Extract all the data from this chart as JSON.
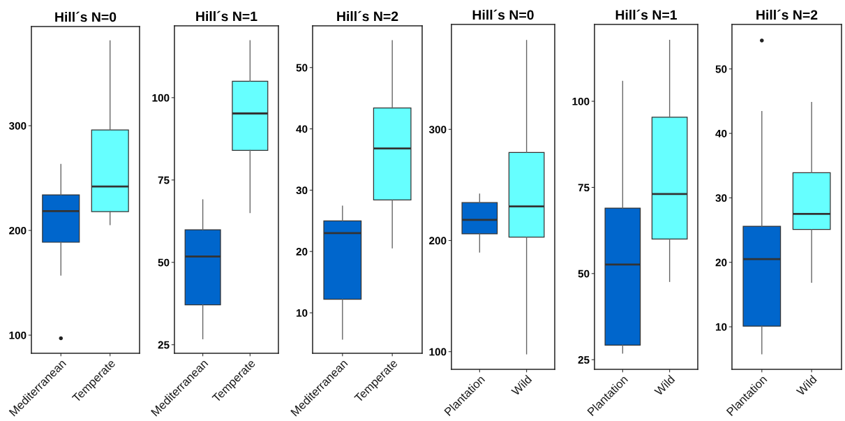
{
  "chart_data": [
    {
      "type": "box",
      "title": "Hill´s N=0",
      "categories": [
        "Mediterranean",
        "Temperate"
      ],
      "colors": [
        "#0066cc",
        "#66ffff"
      ],
      "boxes": [
        {
          "low": 157.3,
          "q1": 188.7,
          "median": 218.5,
          "q3": 234,
          "high": 263,
          "outliers": [
            97
          ]
        },
        {
          "low": 205.5,
          "q1": 218,
          "median": 242,
          "q3": 296,
          "high": 381
        }
      ],
      "ylim": [
        82.7,
        394.7
      ],
      "yticks": [
        100,
        200,
        300
      ]
    },
    {
      "type": "box",
      "title": "Hill´s N=1",
      "categories": [
        "Mediterranean",
        "Temperate"
      ],
      "colors": [
        "#0066cc",
        "#66ffff"
      ],
      "boxes": [
        {
          "low": 26.8,
          "q1": 37.1,
          "median": 51.8,
          "q3": 59.9,
          "high": 69
        },
        {
          "low": 65.1,
          "q1": 84,
          "median": 95.2,
          "q3": 105,
          "high": 117.3
        }
      ],
      "ylim": [
        22.4,
        121.8
      ],
      "yticks": [
        25,
        50,
        75,
        100
      ]
    },
    {
      "type": "box",
      "title": "Hill´s N=2",
      "categories": [
        "Mediterranean",
        "Temperate"
      ],
      "colors": [
        "#0066cc",
        "#66ffff"
      ],
      "boxes": [
        {
          "low": 5.7,
          "q1": 12.2,
          "median": 23,
          "q3": 25,
          "high": 27.4
        },
        {
          "low": 20.6,
          "q1": 28.4,
          "median": 36.8,
          "q3": 43.4,
          "high": 54.4
        }
      ],
      "ylim": [
        3.4,
        56.8
      ],
      "yticks": [
        10,
        20,
        30,
        40,
        50
      ]
    },
    {
      "type": "box",
      "title": "Hill´s N=0",
      "categories": [
        "Plantation",
        "Wild"
      ],
      "colors": [
        "#0066cc",
        "#66ffff"
      ],
      "boxes": [
        {
          "low": 189.6,
          "q1": 206,
          "median": 218.6,
          "q3": 234.1,
          "high": 241.8
        },
        {
          "low": 98,
          "q1": 203.1,
          "median": 230.7,
          "q3": 279.2,
          "high": 380
        }
      ],
      "ylim": [
        84.1,
        394.4
      ],
      "yticks": [
        100,
        200,
        300
      ]
    },
    {
      "type": "box",
      "title": "Hill´s N=1",
      "categories": [
        "Plantation",
        "Wild"
      ],
      "colors": [
        "#0066cc",
        "#66ffff"
      ],
      "boxes": [
        {
          "low": 26.9,
          "q1": 29.2,
          "median": 52.6,
          "q3": 69,
          "high": 105.8
        },
        {
          "low": 47.7,
          "q1": 60,
          "median": 73.1,
          "q3": 95.4,
          "high": 117.7
        }
      ],
      "ylim": [
        22.2,
        122.3
      ],
      "yticks": [
        25,
        50,
        75,
        100
      ]
    },
    {
      "type": "box",
      "title": "Hill´s N=2",
      "categories": [
        "Plantation",
        "Wild"
      ],
      "colors": [
        "#0066cc",
        "#66ffff"
      ],
      "boxes": [
        {
          "low": 5.8,
          "q1": 10.1,
          "median": 20.5,
          "q3": 25.6,
          "high": 43.4,
          "outliers": [
            54.4
          ]
        },
        {
          "low": 16.9,
          "q1": 25.1,
          "median": 27.5,
          "q3": 33.9,
          "high": 44.8
        }
      ],
      "ylim": [
        3.4,
        56.9
      ],
      "yticks": [
        10,
        20,
        30,
        40,
        50
      ]
    }
  ]
}
